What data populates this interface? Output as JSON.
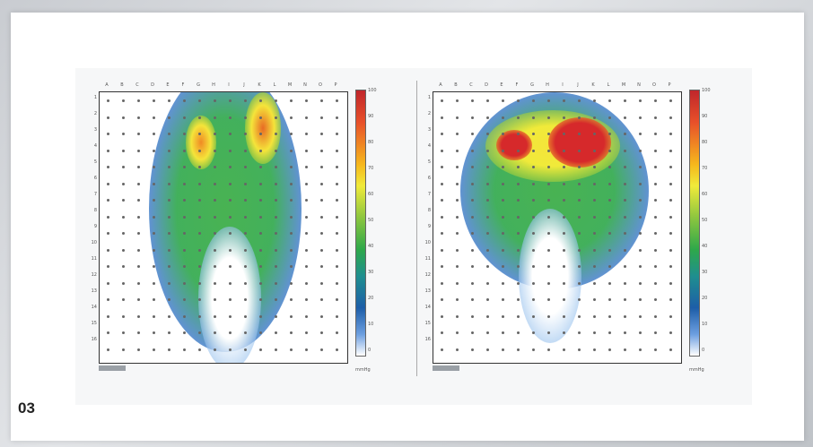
{
  "caption": "03",
  "figure": {
    "column_labels": [
      "A",
      "B",
      "C",
      "D",
      "E",
      "F",
      "G",
      "H",
      "I",
      "J",
      "K",
      "L",
      "M",
      "N",
      "O",
      "P"
    ],
    "row_labels": [
      "1",
      "2",
      "3",
      "4",
      "5",
      "6",
      "7",
      "8",
      "9",
      "10",
      "11",
      "12",
      "13",
      "14",
      "15",
      "16"
    ],
    "colorbar_ticks": [
      "100",
      "90",
      "80",
      "70",
      "60",
      "50",
      "40",
      "30",
      "20",
      "10",
      "0"
    ],
    "unit": "mmHg",
    "palette": {
      "red": "#d6292b",
      "orange": "#f08a24",
      "yellow": "#f5e43a",
      "green": "#3fae49",
      "blue": "#2b6fc0",
      "lightblue": "#9cc4ee"
    }
  },
  "maps": [
    {
      "name": "left-pressure-map"
    },
    {
      "name": "right-pressure-map"
    }
  ]
}
